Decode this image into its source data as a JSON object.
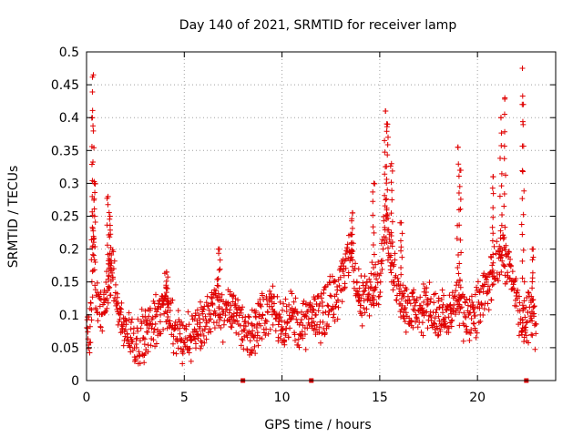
{
  "chart_data": {
    "type": "scatter",
    "title": "Day 140 of 2021, SRMTID for receiver lamp",
    "xlabel": "GPS time / hours",
    "ylabel": "SRMTID / TECUs",
    "xlim": [
      0,
      24
    ],
    "ylim": [
      0,
      0.5
    ],
    "x_ticks": [
      0,
      5,
      10,
      15,
      20
    ],
    "x_tick_labels": [
      "0",
      "5",
      "10",
      "15",
      "20"
    ],
    "y_ticks": [
      0,
      0.05,
      0.1,
      0.15,
      0.2,
      0.25,
      0.3,
      0.35,
      0.4,
      0.45,
      0.5
    ],
    "y_tick_labels": [
      "0",
      "0.05",
      "0.1",
      "0.15",
      "0.2",
      "0.25",
      "0.3",
      "0.35",
      "0.4",
      "0.45",
      "0.5"
    ],
    "grid": true,
    "marker": "plus",
    "series": [
      {
        "name": "SRMTID",
        "color": "#e00000",
        "envelope": [
          {
            "x": 0.0,
            "y": 0.07
          },
          {
            "x": 0.2,
            "y": 0.09
          },
          {
            "x": 0.35,
            "y": 0.2
          },
          {
            "x": 0.5,
            "y": 0.12
          },
          {
            "x": 0.8,
            "y": 0.1
          },
          {
            "x": 1.0,
            "y": 0.12
          },
          {
            "x": 1.3,
            "y": 0.18
          },
          {
            "x": 1.6,
            "y": 0.1
          },
          {
            "x": 2.0,
            "y": 0.08
          },
          {
            "x": 2.5,
            "y": 0.06
          },
          {
            "x": 3.0,
            "y": 0.07
          },
          {
            "x": 3.5,
            "y": 0.09
          },
          {
            "x": 4.0,
            "y": 0.12
          },
          {
            "x": 4.5,
            "y": 0.08
          },
          {
            "x": 5.0,
            "y": 0.06
          },
          {
            "x": 5.5,
            "y": 0.07
          },
          {
            "x": 6.0,
            "y": 0.09
          },
          {
            "x": 6.5,
            "y": 0.12
          },
          {
            "x": 7.0,
            "y": 0.1
          },
          {
            "x": 7.5,
            "y": 0.11
          },
          {
            "x": 8.0,
            "y": 0.08
          },
          {
            "x": 8.5,
            "y": 0.07
          },
          {
            "x": 9.0,
            "y": 0.1
          },
          {
            "x": 9.5,
            "y": 0.11
          },
          {
            "x": 10.0,
            "y": 0.09
          },
          {
            "x": 10.5,
            "y": 0.1
          },
          {
            "x": 11.0,
            "y": 0.08
          },
          {
            "x": 11.5,
            "y": 0.09
          },
          {
            "x": 12.0,
            "y": 0.1
          },
          {
            "x": 12.5,
            "y": 0.12
          },
          {
            "x": 13.0,
            "y": 0.14
          },
          {
            "x": 13.5,
            "y": 0.2
          },
          {
            "x": 14.0,
            "y": 0.12
          },
          {
            "x": 14.5,
            "y": 0.13
          },
          {
            "x": 15.0,
            "y": 0.16
          },
          {
            "x": 15.3,
            "y": 0.25
          },
          {
            "x": 15.6,
            "y": 0.18
          },
          {
            "x": 16.0,
            "y": 0.13
          },
          {
            "x": 16.5,
            "y": 0.11
          },
          {
            "x": 17.0,
            "y": 0.1
          },
          {
            "x": 17.5,
            "y": 0.11
          },
          {
            "x": 18.0,
            "y": 0.1
          },
          {
            "x": 18.5,
            "y": 0.09
          },
          {
            "x": 19.0,
            "y": 0.12
          },
          {
            "x": 19.3,
            "y": 0.1
          },
          {
            "x": 19.7,
            "y": 0.09
          },
          {
            "x": 20.0,
            "y": 0.11
          },
          {
            "x": 20.5,
            "y": 0.14
          },
          {
            "x": 21.0,
            "y": 0.18
          },
          {
            "x": 21.3,
            "y": 0.2
          },
          {
            "x": 21.7,
            "y": 0.16
          },
          {
            "x": 22.0,
            "y": 0.12
          },
          {
            "x": 22.3,
            "y": 0.08
          },
          {
            "x": 22.6,
            "y": 0.1
          },
          {
            "x": 23.0,
            "y": 0.09
          }
        ],
        "spikes": [
          {
            "x": 0.35,
            "y": 0.465
          },
          {
            "x": 0.3,
            "y": 0.4
          },
          {
            "x": 0.4,
            "y": 0.3
          },
          {
            "x": 1.1,
            "y": 0.28
          },
          {
            "x": 1.2,
            "y": 0.25
          },
          {
            "x": 4.1,
            "y": 0.165
          },
          {
            "x": 6.8,
            "y": 0.2
          },
          {
            "x": 13.6,
            "y": 0.255
          },
          {
            "x": 14.7,
            "y": 0.3
          },
          {
            "x": 15.3,
            "y": 0.41
          },
          {
            "x": 15.4,
            "y": 0.39
          },
          {
            "x": 15.6,
            "y": 0.33
          },
          {
            "x": 16.1,
            "y": 0.24
          },
          {
            "x": 19.0,
            "y": 0.355
          },
          {
            "x": 19.1,
            "y": 0.32
          },
          {
            "x": 20.8,
            "y": 0.31
          },
          {
            "x": 21.2,
            "y": 0.4
          },
          {
            "x": 21.4,
            "y": 0.43
          },
          {
            "x": 22.3,
            "y": 0.475
          },
          {
            "x": 22.35,
            "y": 0.42
          },
          {
            "x": 22.8,
            "y": 0.2
          }
        ],
        "baseline_markers": [
          {
            "x": 8.0,
            "y": 0.0
          },
          {
            "x": 11.5,
            "y": 0.0
          },
          {
            "x": 22.5,
            "y": 0.0
          }
        ]
      }
    ]
  }
}
